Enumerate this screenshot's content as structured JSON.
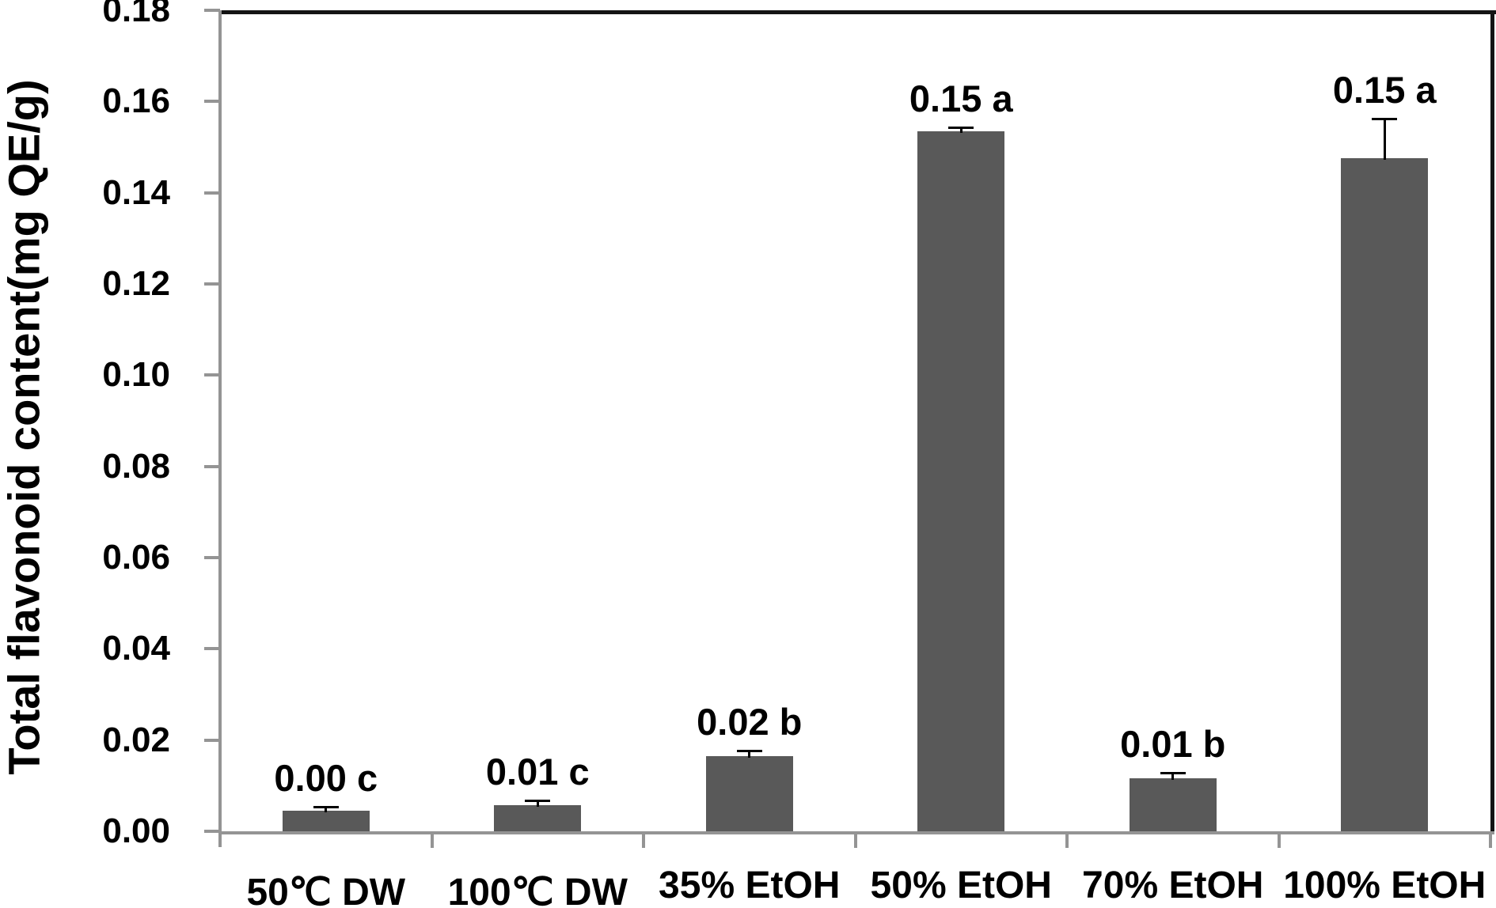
{
  "chart_data": {
    "type": "bar",
    "title": "",
    "xlabel": "",
    "ylabel": "Total flavonoid content(mg QE/g)",
    "ylim": [
      0,
      0.18
    ],
    "ytick_step": 0.02,
    "ytick_labels": [
      "0.00",
      "0.02",
      "0.04",
      "0.06",
      "0.08",
      "0.10",
      "0.12",
      "0.14",
      "0.16",
      "0.18"
    ],
    "categories": [
      "50℃ DW",
      "100℃ DW",
      "35% EtOH",
      "50% EtOH",
      "70% EtOH",
      "100% EtOH"
    ],
    "series": [
      {
        "name": "Total flavonoid content",
        "values": [
          0.0045,
          0.0058,
          0.0165,
          0.1535,
          0.0116,
          0.1475
        ],
        "errors": [
          0.0008,
          0.0009,
          0.0012,
          0.0009,
          0.0012,
          0.0088
        ],
        "value_labels": [
          "0.00 c",
          "0.01 c",
          "0.02 b",
          "0.15 a",
          "0.01 b",
          "0.15 a"
        ]
      }
    ],
    "grid": false,
    "legend": "none",
    "bar_color": "#595959",
    "axis_color": "#949494",
    "frame_color": "#141414",
    "error_bar_color": "#000000",
    "text_color": "#000000"
  }
}
